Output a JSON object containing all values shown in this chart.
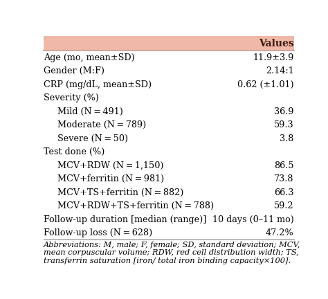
{
  "header_bg": "#f0b8a8",
  "header_text": "Values",
  "header_text_color": "#3a1a10",
  "table_bg": "#ffffff",
  "rows": [
    {
      "label": "Age (mo, mean±SD)",
      "value": "11.9±3.9",
      "indent": 0
    },
    {
      "label": "Gender (M:F)",
      "value": "2.14:1",
      "indent": 0
    },
    {
      "label": "CRP (mg/dL, mean±SD)",
      "value": "0.62 (±1.01)",
      "indent": 0
    },
    {
      "label": "Severity (%)",
      "value": "",
      "indent": 0
    },
    {
      "label": "Mild (N = 491)",
      "value": "36.9",
      "indent": 1
    },
    {
      "label": "Moderate (N = 789)",
      "value": "59.3",
      "indent": 1
    },
    {
      "label": "Severe (N = 50)",
      "value": "3.8",
      "indent": 1
    },
    {
      "label": "Test done (%)",
      "value": "",
      "indent": 0
    },
    {
      "label": "MCV+RDW (N = 1,150)",
      "value": "86.5",
      "indent": 1
    },
    {
      "label": "MCV+ferritin (N = 981)",
      "value": "73.8",
      "indent": 1
    },
    {
      "label": "MCV+TS+ferritin (N = 882)",
      "value": "66.3",
      "indent": 1
    },
    {
      "label": "MCV+RDW+TS+ferritin (N = 788)",
      "value": "59.2",
      "indent": 1
    },
    {
      "label": "Follow-up duration [median (range)]",
      "value": "10 days (0–11 mo)",
      "indent": 0
    },
    {
      "label": "Follow-up loss (N = 628)",
      "value": "47.2%",
      "indent": 0
    }
  ],
  "footer_lines": [
    "Abbreviations: M, male; F, female; SD, standard deviation; MCV,",
    "mean corpuscular volume; RDW, red cell distribution width; TS,",
    "transferrin saturation [iron/ total iron binding capacity×100]."
  ],
  "text_color": "#000000",
  "font_size": 9.2,
  "header_font_size": 10.0,
  "footer_font_size": 8.2
}
